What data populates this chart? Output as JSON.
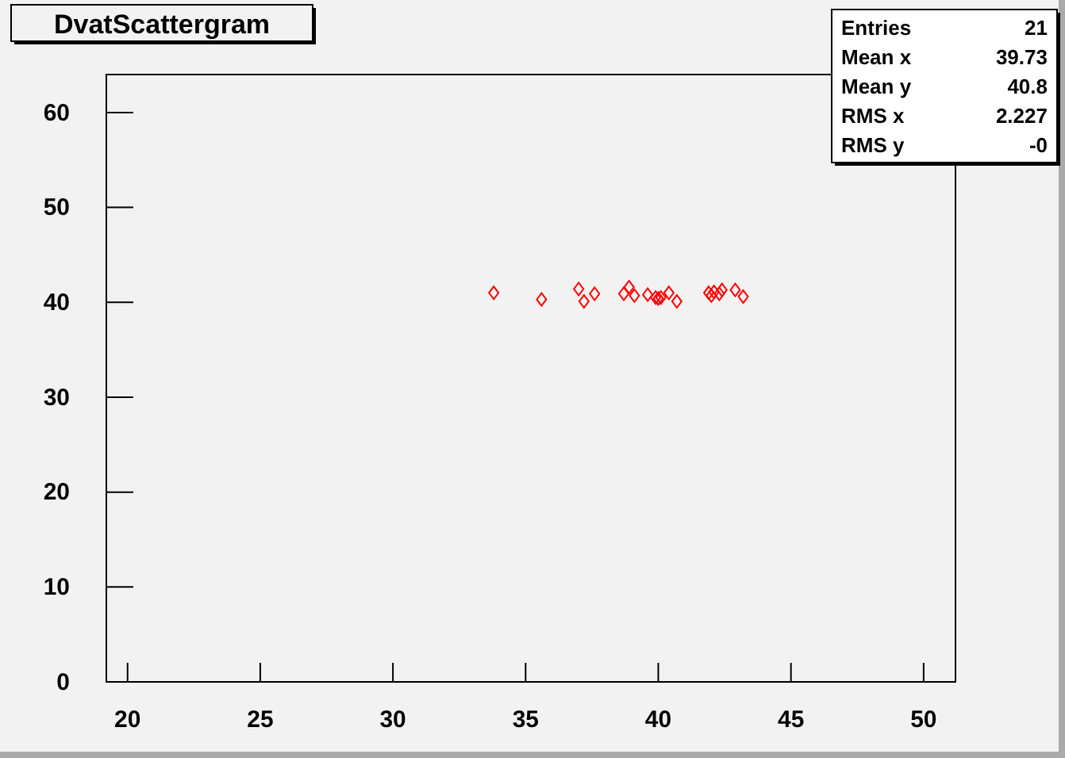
{
  "chart_data": {
    "type": "scatter",
    "title": "DvatScattergram",
    "annotations": [
      "Entries",
      "21",
      "Mean x",
      "39.73",
      "Mean y",
      "40.8",
      "RMS x",
      "2.227",
      "RMS y",
      "-0"
    ],
    "x": [
      33.8,
      35.6,
      37.0,
      37.2,
      37.6,
      38.7,
      38.9,
      39.1,
      39.6,
      39.9,
      40.0,
      40.1,
      40.4,
      40.7,
      41.9,
      42.0,
      42.1,
      42.3,
      42.4,
      42.9,
      43.2
    ],
    "series": [
      {
        "color": "#ff0000",
        "values": [
          41.0,
          40.3,
          41.4,
          40.1,
          40.9,
          40.9,
          41.6,
          40.7,
          40.8,
          40.5,
          40.4,
          40.5,
          41.0,
          40.1,
          41.0,
          40.7,
          41.1,
          40.9,
          41.3,
          41.3,
          40.6
        ]
      }
    ],
    "marker": "diamond",
    "xlim": [
      19.2,
      51.2
    ],
    "ylim": [
      0,
      64
    ],
    "xticks": [
      20,
      25,
      30,
      35,
      40,
      45,
      50
    ],
    "yticks": [
      0,
      10,
      20,
      30,
      40,
      50,
      60
    ]
  }
}
